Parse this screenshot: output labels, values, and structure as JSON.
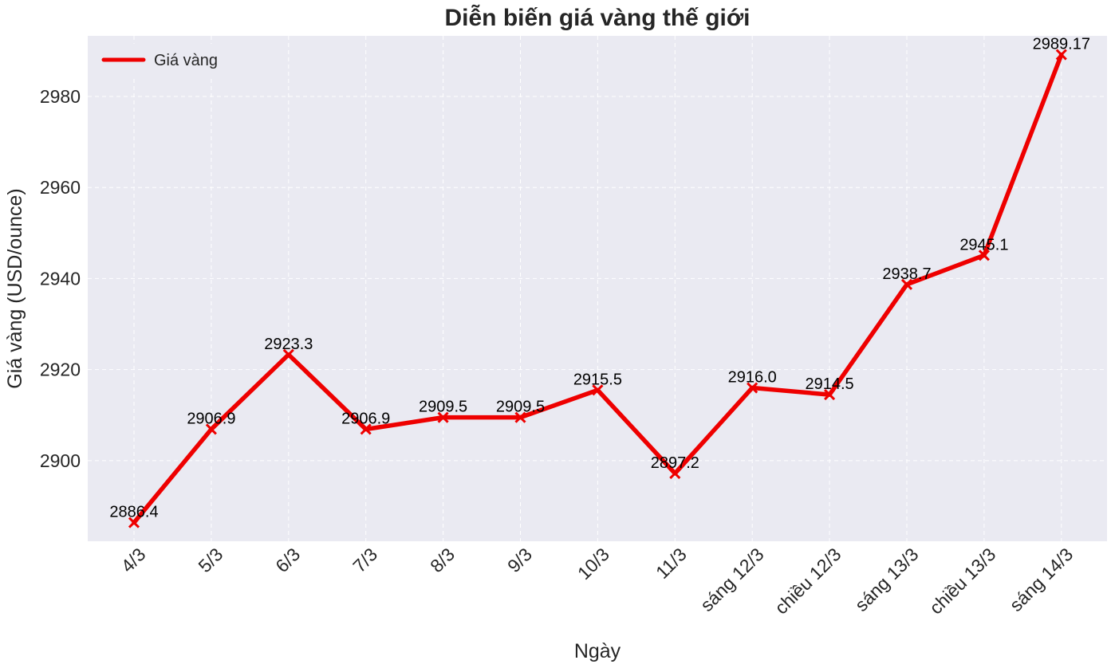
{
  "chart_data": {
    "type": "line",
    "title": "Diễn biến giá vàng thế giới",
    "xlabel": "Ngày",
    "ylabel": "Giá vàng (USD/ounce)",
    "categories": [
      "4/3",
      "5/3",
      "6/3",
      "7/3",
      "8/3",
      "9/3",
      "10/3",
      "11/3",
      "sáng 12/3",
      "chiều 12/3",
      "sáng 13/3",
      "chiều 13/3",
      "sáng 14/3"
    ],
    "series": [
      {
        "name": "Giá vàng",
        "values": [
          2886.4,
          2906.9,
          2923.3,
          2906.9,
          2909.5,
          2909.5,
          2915.5,
          2897.2,
          2916.0,
          2914.5,
          2938.7,
          2945.1,
          2989.17
        ],
        "labels": [
          "2886.4",
          "2906.9",
          "2923.3",
          "2906.9",
          "2909.5",
          "2909.5",
          "2915.5",
          "2897.2",
          "2916.0",
          "2914.5",
          "2938.7",
          "2945.1",
          "2989.17"
        ],
        "color": "#ee0000",
        "marker": "x"
      }
    ],
    "ylim": [
      2882.3,
      2993.3
    ],
    "yticks": [
      2900,
      2920,
      2940,
      2960,
      2980
    ],
    "grid": true,
    "legend": "top-left",
    "colors": {
      "plot_background": "#eaeaf2",
      "grid": "#ffffff",
      "line": "#ee0000"
    }
  }
}
